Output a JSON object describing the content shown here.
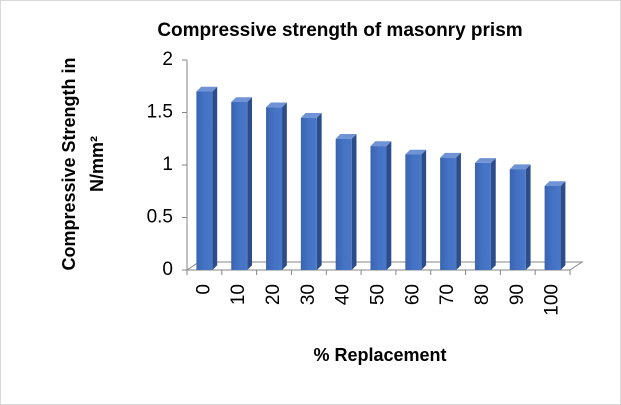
{
  "chart_data": {
    "type": "bar",
    "title": "Compressive strength of masonry prism",
    "ylabel": [
      "Compressive Strength in",
      "N/mm²"
    ],
    "xlabel": "% Replacement",
    "categories": [
      "0",
      "10",
      "20",
      "30",
      "40",
      "50",
      "60",
      "70",
      "80",
      "90",
      "100"
    ],
    "values": [
      1.7,
      1.6,
      1.55,
      1.45,
      1.25,
      1.18,
      1.1,
      1.07,
      1.02,
      0.96,
      0.8
    ],
    "color": "#4472c4",
    "ylim": [
      0,
      2
    ],
    "yticks": [
      0,
      0.5,
      1,
      1.5,
      2
    ],
    "grid": false
  }
}
